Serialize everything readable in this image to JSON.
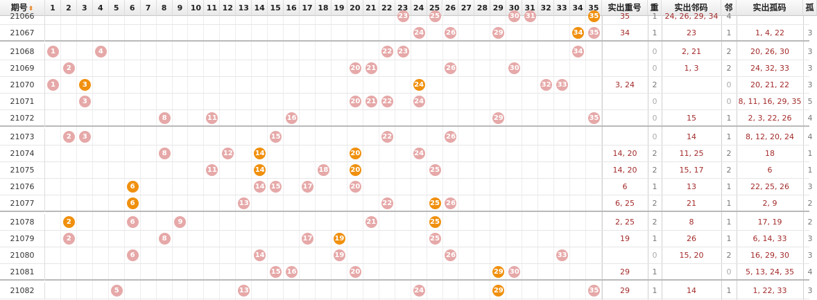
{
  "header": {
    "period_label": "期号",
    "numbers": [
      1,
      2,
      3,
      4,
      5,
      6,
      7,
      8,
      9,
      10,
      11,
      12,
      13,
      14,
      15,
      16,
      17,
      18,
      19,
      20,
      21,
      22,
      23,
      24,
      25,
      26,
      27,
      28,
      29,
      30,
      31,
      32,
      33,
      34,
      35
    ],
    "repeat_label": "实出重号",
    "repeat_count_label": "重",
    "adjacent_label": "实出邻码",
    "adjacent_count_label": "邻",
    "isolated_label": "实出孤码",
    "isolated_count_label": "孤"
  },
  "colors": {
    "normal_ball": "#e6a8a8",
    "repeat_ball": "#f0900e",
    "text": "#a32a2a"
  },
  "rows": [
    {
      "period": "21066",
      "balls": [
        23,
        25,
        30,
        31,
        35
      ],
      "repeat_balls": [
        35
      ],
      "repeat": "35",
      "rc": "1",
      "adjacent": "24, 26, 29, 34",
      "ac": "4",
      "isolated": "",
      "ic": ""
    },
    {
      "period": "21067",
      "balls": [
        24,
        26,
        29,
        34,
        35
      ],
      "repeat_balls": [
        34
      ],
      "repeat": "34",
      "rc": "1",
      "adjacent": "23",
      "ac": "1",
      "isolated": "1, 4, 22",
      "ic": "3",
      "group_end": true
    },
    {
      "period": "21068",
      "balls": [
        1,
        4,
        22,
        23,
        34
      ],
      "repeat_balls": [],
      "repeat": "",
      "rc": "0",
      "adjacent": "2, 21",
      "ac": "2",
      "isolated": "20, 26, 30",
      "ic": "3"
    },
    {
      "period": "21069",
      "balls": [
        2,
        20,
        21,
        26,
        30
      ],
      "repeat_balls": [],
      "repeat": "",
      "rc": "0",
      "adjacent": "1, 3",
      "ac": "2",
      "isolated": "24, 32, 33",
      "ic": "3"
    },
    {
      "period": "21070",
      "balls": [
        1,
        3,
        24,
        32,
        33
      ],
      "repeat_balls": [
        3,
        24
      ],
      "repeat": "3, 24",
      "rc": "2",
      "adjacent": "",
      "ac": "0",
      "isolated": "20, 21, 22",
      "ic": "3"
    },
    {
      "period": "21071",
      "balls": [
        3,
        20,
        21,
        22,
        24
      ],
      "repeat_balls": [],
      "repeat": "",
      "rc": "0",
      "adjacent": "",
      "ac": "0",
      "isolated": "8, 11, 16, 29, 35",
      "ic": "5"
    },
    {
      "period": "21072",
      "balls": [
        8,
        11,
        16,
        29,
        35
      ],
      "repeat_balls": [],
      "repeat": "",
      "rc": "0",
      "adjacent": "15",
      "ac": "1",
      "isolated": "2, 3, 22, 26",
      "ic": "4",
      "group_end": true
    },
    {
      "period": "21073",
      "balls": [
        2,
        3,
        15,
        22,
        26
      ],
      "repeat_balls": [],
      "repeat": "",
      "rc": "0",
      "adjacent": "14",
      "ac": "1",
      "isolated": "8, 12, 20, 24",
      "ic": "4"
    },
    {
      "period": "21074",
      "balls": [
        8,
        12,
        14,
        20,
        24
      ],
      "repeat_balls": [
        14,
        20
      ],
      "repeat": "14, 20",
      "rc": "2",
      "adjacent": "11, 25",
      "ac": "2",
      "isolated": "18",
      "ic": "1"
    },
    {
      "period": "21075",
      "balls": [
        11,
        14,
        18,
        20,
        25
      ],
      "repeat_balls": [
        14,
        20
      ],
      "repeat": "14, 20",
      "rc": "2",
      "adjacent": "15, 17",
      "ac": "2",
      "isolated": "6",
      "ic": "1"
    },
    {
      "period": "21076",
      "balls": [
        6,
        14,
        15,
        17,
        20
      ],
      "repeat_balls": [
        6
      ],
      "repeat": "6",
      "rc": "1",
      "adjacent": "13",
      "ac": "1",
      "isolated": "22, 25, 26",
      "ic": "3"
    },
    {
      "period": "21077",
      "balls": [
        6,
        13,
        22,
        25,
        26
      ],
      "repeat_balls": [
        6,
        25
      ],
      "repeat": "6, 25",
      "rc": "2",
      "adjacent": "21",
      "ac": "1",
      "isolated": "2, 9",
      "ic": "2",
      "group_end": true
    },
    {
      "period": "21078",
      "balls": [
        2,
        6,
        9,
        21,
        25
      ],
      "repeat_balls": [
        2,
        25
      ],
      "repeat": "2, 25",
      "rc": "2",
      "adjacent": "8",
      "ac": "1",
      "isolated": "17, 19",
      "ic": "2"
    },
    {
      "period": "21079",
      "balls": [
        2,
        8,
        17,
        19,
        25
      ],
      "repeat_balls": [
        19
      ],
      "repeat": "19",
      "rc": "1",
      "adjacent": "26",
      "ac": "1",
      "isolated": "6, 14, 33",
      "ic": "3"
    },
    {
      "period": "21080",
      "balls": [
        6,
        14,
        19,
        26,
        33
      ],
      "repeat_balls": [],
      "repeat": "",
      "rc": "0",
      "adjacent": "15, 20",
      "ac": "2",
      "isolated": "16, 29, 30",
      "ic": "3"
    },
    {
      "period": "21081",
      "balls": [
        15,
        16,
        20,
        29,
        30
      ],
      "repeat_balls": [
        29
      ],
      "repeat": "29",
      "rc": "1",
      "adjacent": "",
      "ac": "0",
      "isolated": "5, 13, 24, 35",
      "ic": "4",
      "group_end": true
    },
    {
      "period": "21082",
      "balls": [
        5,
        13,
        24,
        29,
        35
      ],
      "repeat_balls": [
        29
      ],
      "repeat": "29",
      "rc": "1",
      "adjacent": "14",
      "ac": "1",
      "isolated": "1, 22, 33",
      "ic": "3"
    }
  ]
}
